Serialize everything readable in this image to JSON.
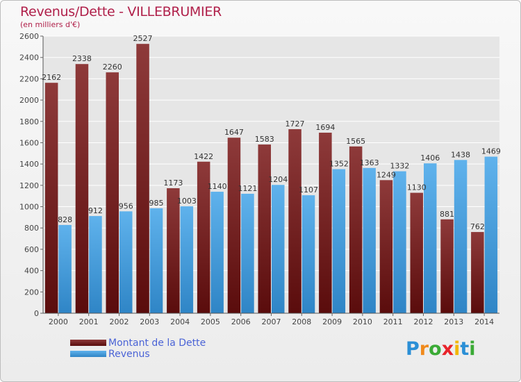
{
  "title": "Revenus/Dette - VILLEBRUMIER",
  "subtitle": "(en milliers d'€)",
  "colors": {
    "title": "#b0204a",
    "dette_top": "#8e3a3a",
    "dette_bottom": "#5a0c0c",
    "revenus_top": "#5fb2ec",
    "revenus_bottom": "#2f85c6",
    "legend_text": "#4a63d6",
    "grid": "#ffffff"
  },
  "legend": {
    "dette": "Montant de la Dette",
    "revenus": "Revenus"
  },
  "logo": {
    "letters": [
      "P",
      "r",
      "o",
      "x",
      "i",
      "t",
      "i"
    ],
    "colors": [
      "#2b8fd6",
      "#f08a1c",
      "#3aaa35",
      "#e8232a",
      "#f2b600",
      "#2b8fd6",
      "#3aaa35"
    ]
  },
  "chart_data": {
    "type": "bar",
    "title": "Revenus/Dette - VILLEBRUMIER",
    "ylabel": "(en milliers d'€)",
    "xlabel": "",
    "ylim": [
      0,
      2600
    ],
    "yticks": [
      0,
      200,
      400,
      600,
      800,
      1000,
      1200,
      1400,
      1600,
      1800,
      2000,
      2200,
      2400,
      2600
    ],
    "grid": true,
    "legend_position": "bottom-left",
    "categories": [
      "2000",
      "2001",
      "2002",
      "2003",
      "2004",
      "2005",
      "2006",
      "2007",
      "2008",
      "2009",
      "2010",
      "2011",
      "2012",
      "2013",
      "2014"
    ],
    "series": [
      {
        "name": "Montant de la Dette",
        "values": [
          2162,
          2338,
          2260,
          2527,
          1173,
          1422,
          1647,
          1583,
          1727,
          1694,
          1565,
          1249,
          1130,
          881,
          762
        ],
        "labels": [
          "2162",
          "2338",
          "2260",
          "2527",
          "1173",
          "1422",
          "1647",
          "1583",
          "1727",
          "1694",
          "1565",
          "1249",
          "1130",
          "881",
          "762"
        ]
      },
      {
        "name": "Revenus",
        "values": [
          828,
          912,
          956,
          985,
          1003,
          1140,
          1121,
          1204,
          1107,
          1352,
          1363,
          1332,
          1406,
          1438,
          1469
        ],
        "labels": [
          "828",
          "912",
          "956",
          "985",
          "1003",
          "1140",
          "1121",
          "1204",
          "1107",
          "1352",
          "1363",
          "1332",
          "1406",
          "1438",
          "1469"
        ]
      }
    ]
  }
}
